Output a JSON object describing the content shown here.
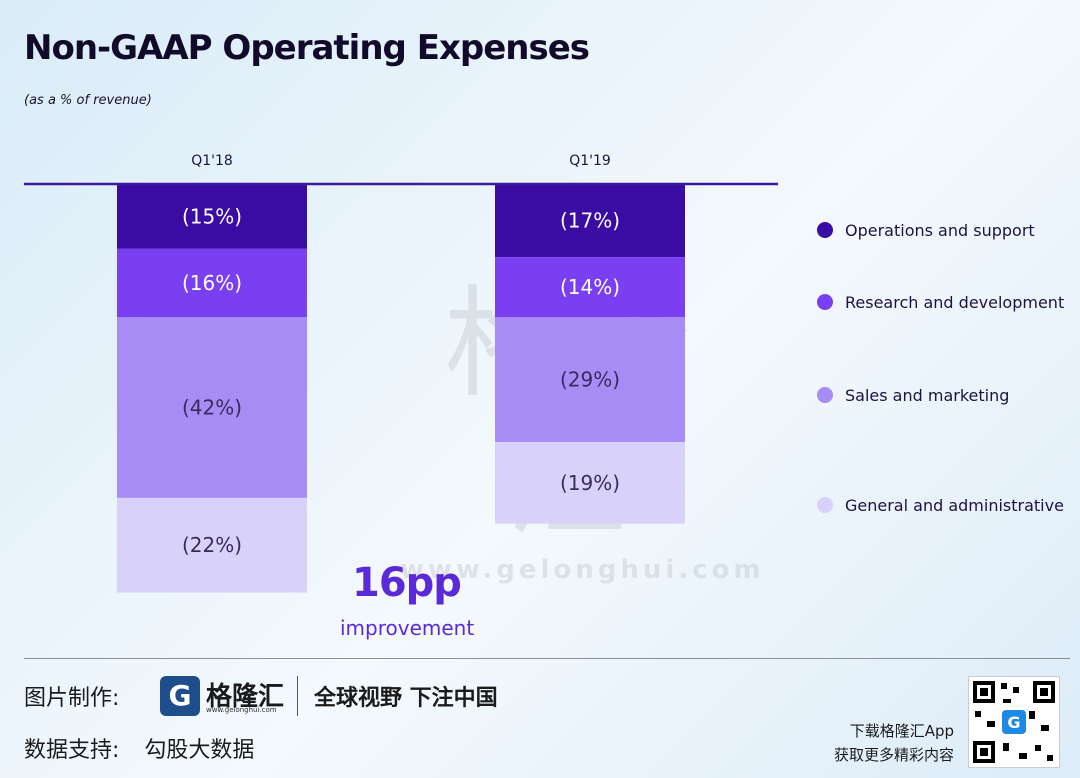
{
  "header": {
    "title": "Non-GAAP Operating Expenses",
    "subtitle": "(as a % of revenue)"
  },
  "chart_data": {
    "type": "bar",
    "stacked": true,
    "orientation": "downward",
    "title": "Non-GAAP Operating Expenses",
    "subtitle": "(as a % of revenue)",
    "categories": [
      "Q1'18",
      "Q1'19"
    ],
    "series": [
      {
        "name": "Operations and support",
        "values": [
          15,
          17
        ],
        "labels": [
          "(15%)",
          "(17%)"
        ],
        "color": "#3a0ca3",
        "text_color": "#ffffff"
      },
      {
        "name": "Research and development",
        "values": [
          16,
          14
        ],
        "labels": [
          "(16%)",
          "(14%)"
        ],
        "color": "#7b3ff2",
        "text_color": "#ffffff"
      },
      {
        "name": "Sales and marketing",
        "values": [
          42,
          29
        ],
        "labels": [
          "(42%)",
          "(29%)"
        ],
        "color": "#a78cf5",
        "text_color": "#3a2b5c"
      },
      {
        "name": "General and administrative",
        "values": [
          22,
          19
        ],
        "labels": [
          "(22%)",
          "(19%)"
        ],
        "color": "#d8d2fb",
        "text_color": "#3a2b5c"
      }
    ],
    "legend_position": "right",
    "ylim": [
      0,
      100
    ]
  },
  "callout": {
    "value": "16pp",
    "label": "improvement"
  },
  "watermark": {
    "cn": "格隆汇",
    "url": "www.gelonghui.com"
  },
  "footer": {
    "made_by_label": "图片制作:",
    "data_label": "数据支持:",
    "data_source": "勾股大数据",
    "logo_icon": "G",
    "logo_name": "格隆汇",
    "logo_url": "www.gelonghui.com",
    "slogan": "全球视野 下注中国",
    "download_line1": "下载格隆汇App",
    "download_line2": "获取更多精彩内容"
  }
}
